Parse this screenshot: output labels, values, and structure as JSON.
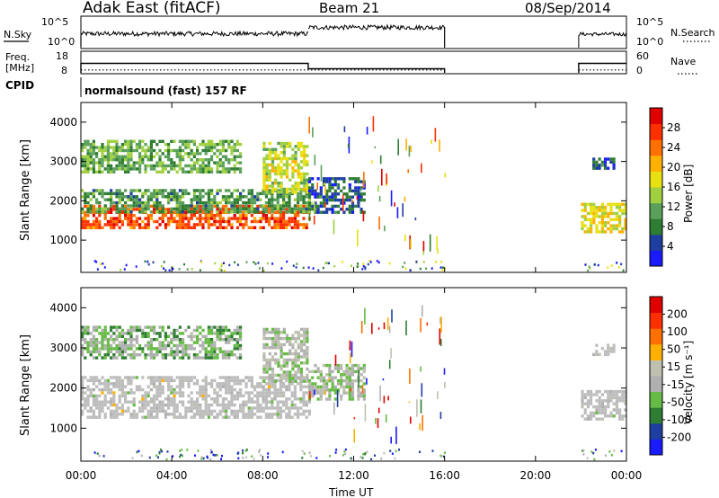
{
  "header": {
    "station": "Adak East (fitACF)",
    "beam": "Beam 21",
    "date": "08/Sep/2014"
  },
  "labels": {
    "nsky": "N.Sky",
    "nsearch": "N.Search",
    "freq": "Freq.",
    "mhz": "[MHz]",
    "nave": "Nave",
    "cpid": "CPID",
    "cpid_name": "normalsound (fast) 157 RF",
    "ylabel": "Slant Range [km]",
    "xlabel": "Time UT",
    "power_label": "Power [dB]",
    "velocity_label": "Velocity [m s⁻¹]"
  },
  "noise_panel": {
    "left_ticks": [
      "10^5",
      "10^0"
    ],
    "right_ticks": [
      "10^5",
      "10^0"
    ]
  },
  "freq_panel": {
    "left_ticks": [
      "18",
      "8"
    ],
    "right_ticks": [
      "60",
      "0"
    ],
    "freq_segments": [
      [
        0.0,
        10.0,
        13.5
      ],
      [
        10.0,
        16.0,
        10.6
      ],
      [
        21.9,
        24.0,
        13.5
      ]
    ],
    "nave_level": 10
  },
  "colors": {
    "power_scale": [
      "#1a1aff",
      "#1f3fa0",
      "#2e7d32",
      "#5aa05a",
      "#a0d040",
      "#e8e010",
      "#ffb000",
      "#ff7000",
      "#ff3000",
      "#e00000"
    ],
    "velocity_scale": [
      "#1a1aff",
      "#1f3fa0",
      "#2e7d32",
      "#66bb44",
      "#b0b0b0",
      "#c0c0b0",
      "#ffb000",
      "#ff7000",
      "#ff3000",
      "#e00000"
    ],
    "ground_scatter": "#bdbdbd"
  },
  "chart_data": [
    {
      "type": "heatmap",
      "title": "Power",
      "xlabel": "Time UT",
      "ylabel": "Slant Range [km]",
      "xticks": [
        "00:00",
        "04:00",
        "08:00",
        "12:00",
        "16:00",
        "20:00",
        "00:00"
      ],
      "xlim_hours": [
        0,
        24
      ],
      "yticks": [
        "1000",
        "2000",
        "3000",
        "4000"
      ],
      "ylim": [
        180,
        4500
      ],
      "colorbar_label": "Power [dB]",
      "colorbar_ticks": [
        "28",
        "24",
        "20",
        "16",
        "12",
        "8",
        "4"
      ],
      "colorbar_range": [
        0,
        32
      ],
      "data_gap_hours": [
        16.0,
        21.9
      ],
      "scatter_bands": [
        {
          "t0": 0.0,
          "t1": 10.0,
          "r0": 1350,
          "r1": 1900,
          "value": 26
        },
        {
          "t0": 0.0,
          "t1": 10.0,
          "r0": 1750,
          "r1": 2300,
          "value": 10
        },
        {
          "t0": 0.0,
          "t1": 7.0,
          "r0": 2750,
          "r1": 3550,
          "value": 12
        },
        {
          "t0": 8.0,
          "t1": 10.0,
          "r0": 2200,
          "r1": 3500,
          "value": 16
        },
        {
          "t0": 10.0,
          "t1": 12.5,
          "r0": 1700,
          "r1": 2600,
          "value": 6
        },
        {
          "t0": 22.0,
          "t1": 24.0,
          "r0": 1250,
          "r1": 1950,
          "value": 18
        },
        {
          "t0": 22.5,
          "t1": 23.5,
          "r0": 2800,
          "r1": 3100,
          "value": 6
        }
      ]
    },
    {
      "type": "heatmap",
      "title": "Velocity",
      "xlabel": "Time UT",
      "ylabel": "Slant Range [km]",
      "xticks": [
        "00:00",
        "04:00",
        "08:00",
        "12:00",
        "16:00",
        "20:00",
        "00:00"
      ],
      "xlim_hours": [
        0,
        24
      ],
      "yticks": [
        "1000",
        "2000",
        "3000",
        "4000"
      ],
      "ylim": [
        180,
        4500
      ],
      "colorbar_label": "Velocity [m s⁻¹]",
      "colorbar_ticks": [
        "200",
        "100",
        "50",
        "15",
        "-15",
        "-50",
        "-100",
        "-200"
      ],
      "colorbar_range": [
        -250,
        250
      ],
      "data_gap_hours": [
        16.0,
        21.9
      ],
      "scatter_bands": [
        {
          "t0": 0.0,
          "t1": 10.0,
          "r0": 1300,
          "r1": 2300,
          "value": 0
        },
        {
          "t0": 0.0,
          "t1": 7.0,
          "r0": 2750,
          "r1": 3550,
          "value": -60
        },
        {
          "t0": 8.0,
          "t1": 10.0,
          "r0": 2200,
          "r1": 3500,
          "value": -20
        },
        {
          "t0": 10.0,
          "t1": 12.5,
          "r0": 1700,
          "r1": 2600,
          "value": -30
        },
        {
          "t0": 22.0,
          "t1": 24.0,
          "r0": 1250,
          "r1": 1950,
          "value": 0
        },
        {
          "t0": 22.5,
          "t1": 23.5,
          "r0": 2800,
          "r1": 3100,
          "value": 10
        }
      ]
    }
  ]
}
